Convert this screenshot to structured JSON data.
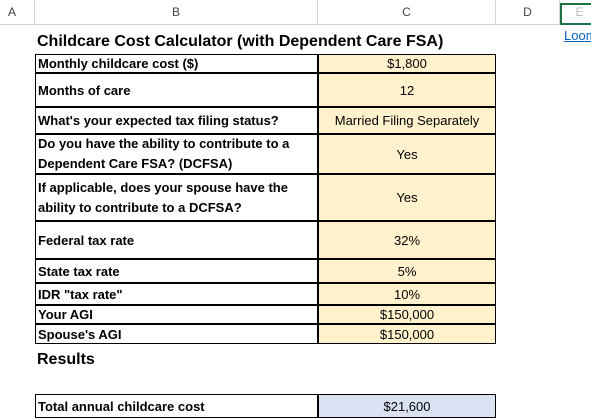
{
  "columns": [
    "A",
    "B",
    "C",
    "D",
    "E"
  ],
  "title": "Childcare Cost Calculator (with Dependent Care FSA)",
  "rows": [
    {
      "label": "Monthly childcare cost ($)",
      "value": "$1,800"
    },
    {
      "label": "Months of care",
      "value": "12"
    },
    {
      "label": "What's your expected tax filing status?",
      "value": "Married Filing Separately"
    },
    {
      "label": "Do you have the ability to contribute to a Dependent Care FSA? (DCFSA)",
      "value": "Yes"
    },
    {
      "label": "If applicable, does your spouse have the ability to contribute to a DCFSA?",
      "value": "Yes"
    },
    {
      "label": "Federal tax rate",
      "value": "32%"
    },
    {
      "label": "State tax rate",
      "value": "5%"
    },
    {
      "label": "IDR \"tax rate\"",
      "value": "10%"
    },
    {
      "label": "Your AGI",
      "value": "$150,000"
    },
    {
      "label": "Spouse's AGI",
      "value": "$150,000"
    }
  ],
  "results_heading": "Results",
  "results": [
    {
      "label": "Total annual childcare cost",
      "value": "$21,600"
    }
  ],
  "side_link": "Loom",
  "colors": {
    "input_fill": "#fff2cc",
    "result_fill": "#d9e1f2",
    "selection": "#1e7145",
    "link": "#0563c1"
  }
}
